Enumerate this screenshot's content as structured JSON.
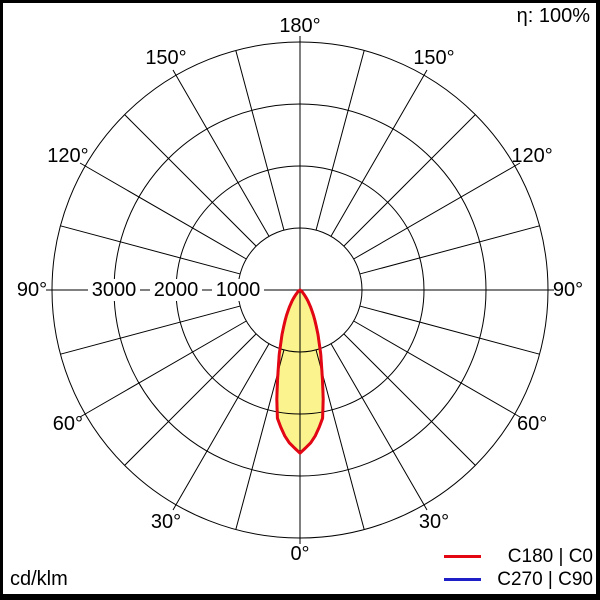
{
  "header": {
    "efficiency": "η: 100%"
  },
  "footer": {
    "unit": "cd/klm"
  },
  "legend": [
    {
      "label": "C180 | C0",
      "color": "#e30613"
    },
    {
      "label": "C270 | C90",
      "color": "#1f1fc8"
    }
  ],
  "chart_data": {
    "type": "polar",
    "subtype": "luminous-intensity-distribution",
    "unit": "cd/klm",
    "efficiency_label": "η: 100%",
    "angle_step_deg": 15,
    "angle_tick_step_deg": 30,
    "radial_axis": {
      "gridlines": [
        1000,
        2000,
        3000
      ],
      "max": 4000,
      "labels_side": "left"
    },
    "angle_labels": [
      {
        "label": "180°",
        "theta": 180,
        "side": 0
      },
      {
        "label": "150°",
        "theta": 150,
        "side": -1
      },
      {
        "label": "150°",
        "theta": 150,
        "side": 1
      },
      {
        "label": "120°",
        "theta": 120,
        "side": -1
      },
      {
        "label": "120°",
        "theta": 120,
        "side": 1
      },
      {
        "label": "90°",
        "theta": 90,
        "side": -1
      },
      {
        "label": "90°",
        "theta": 90,
        "side": 1
      },
      {
        "label": "60°",
        "theta": 60,
        "side": -1
      },
      {
        "label": "60°",
        "theta": 60,
        "side": 1
      },
      {
        "label": "30°",
        "theta": 30,
        "side": -1
      },
      {
        "label": "30°",
        "theta": 30,
        "side": 1
      },
      {
        "label": "0°",
        "theta": 0,
        "side": 0
      }
    ],
    "radial_labels": [
      {
        "label": "3000",
        "value": 3000
      },
      {
        "label": "2000",
        "value": 2000
      },
      {
        "label": "1000",
        "value": 1000
      }
    ],
    "series": [
      {
        "name": "C180 | C0",
        "color": "#e30613",
        "fill": "#fbf38d",
        "gamma_deg": [
          0,
          5,
          10,
          15,
          20,
          25,
          30,
          35,
          40,
          45,
          50,
          55,
          60,
          65,
          70,
          75,
          80,
          85,
          90
        ],
        "values": [
          2630,
          2430,
          2100,
          1350,
          900,
          590,
          380,
          230,
          130,
          70,
          35,
          18,
          8,
          4,
          2,
          1,
          0,
          0,
          0
        ]
      },
      {
        "name": "C270 | C90",
        "color": "#1f1fc8",
        "fill": null,
        "gamma_deg": [
          0,
          5,
          10,
          15,
          20,
          25,
          30,
          35,
          40,
          45,
          50,
          55,
          60,
          65,
          70,
          75,
          80,
          85,
          90
        ],
        "values": [
          2630,
          2430,
          2100,
          1350,
          900,
          590,
          380,
          230,
          130,
          70,
          35,
          18,
          8,
          4,
          2,
          1,
          0,
          0,
          0
        ]
      }
    ]
  }
}
